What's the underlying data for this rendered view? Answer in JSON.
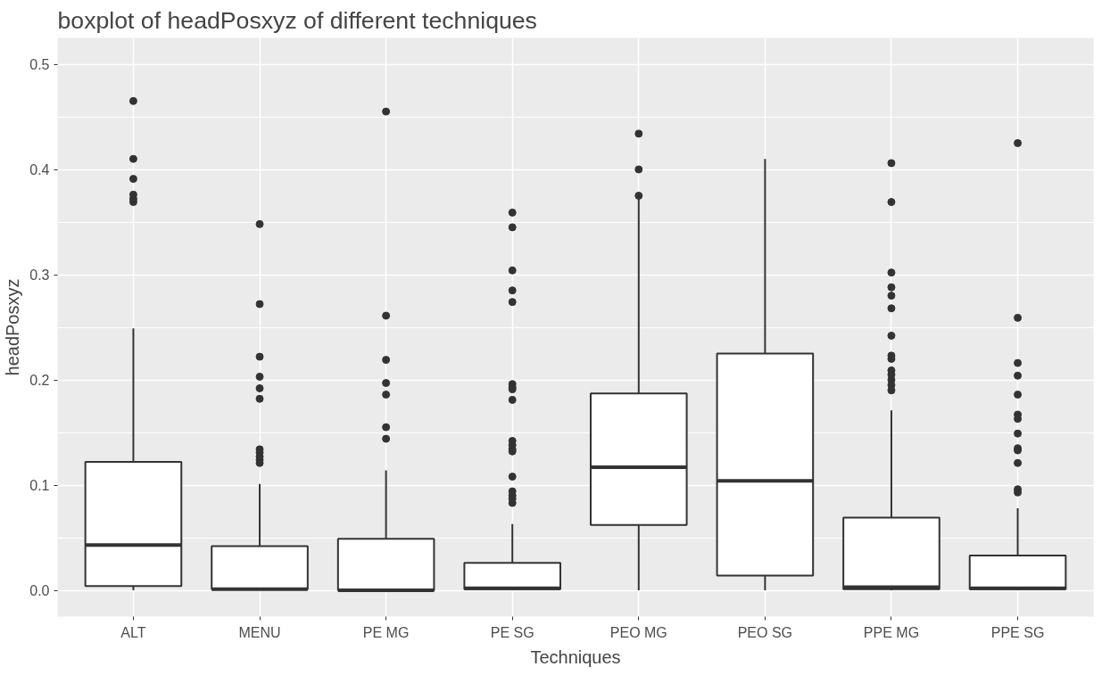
{
  "chart_data": {
    "type": "box",
    "title": "boxplot of headPosxyz of different techniques",
    "xlabel": "Techniques",
    "ylabel": "headPosxyz",
    "categories": [
      "ALT",
      "MENU",
      "PE MG",
      "PE SG",
      "PEO MG",
      "PEO SG",
      "PPE MG",
      "PPE SG"
    ],
    "boxes": [
      {
        "low": 0.0,
        "q1": 0.004,
        "median": 0.043,
        "q3": 0.122,
        "high": 0.249,
        "outliers": [
          0.465,
          0.41,
          0.391,
          0.376,
          0.372,
          0.369
        ]
      },
      {
        "low": 0.0,
        "q1": 0.001,
        "median": 0.001,
        "q3": 0.042,
        "high": 0.101,
        "outliers": [
          0.348,
          0.272,
          0.222,
          0.203,
          0.192,
          0.182,
          0.134,
          0.131,
          0.127,
          0.124,
          0.121
        ]
      },
      {
        "low": 0.0,
        "q1": 0.0,
        "median": 0.0,
        "q3": 0.049,
        "high": 0.114,
        "outliers": [
          0.455,
          0.261,
          0.219,
          0.197,
          0.186,
          0.155,
          0.144
        ]
      },
      {
        "low": 0.0,
        "q1": 0.001,
        "median": 0.002,
        "q3": 0.026,
        "high": 0.063,
        "outliers": [
          0.359,
          0.345,
          0.304,
          0.285,
          0.274,
          0.196,
          0.193,
          0.191,
          0.181,
          0.142,
          0.138,
          0.134,
          0.132,
          0.108,
          0.094,
          0.09,
          0.087,
          0.083
        ]
      },
      {
        "low": 0.0,
        "q1": 0.062,
        "median": 0.117,
        "q3": 0.187,
        "high": 0.372,
        "outliers": [
          0.434,
          0.4,
          0.375
        ]
      },
      {
        "low": 0.0,
        "q1": 0.014,
        "median": 0.104,
        "q3": 0.225,
        "high": 0.41
      },
      {
        "low": 0.0,
        "q1": 0.001,
        "median": 0.003,
        "q3": 0.069,
        "high": 0.171,
        "outliers": [
          0.406,
          0.369,
          0.302,
          0.288,
          0.28,
          0.268,
          0.242,
          0.223,
          0.22,
          0.209,
          0.205,
          0.2,
          0.195,
          0.19
        ]
      },
      {
        "low": 0.0,
        "q1": 0.001,
        "median": 0.002,
        "q3": 0.033,
        "high": 0.078,
        "outliers": [
          0.425,
          0.259,
          0.216,
          0.204,
          0.186,
          0.167,
          0.163,
          0.149,
          0.135,
          0.133,
          0.121,
          0.096,
          0.093
        ]
      }
    ],
    "ylim": [
      -0.025,
      0.525
    ],
    "yticks": [
      {
        "value": 0,
        "label": "0.0"
      },
      0.1,
      0.2,
      0.3,
      0.4,
      0.5
    ],
    "grid": true
  }
}
